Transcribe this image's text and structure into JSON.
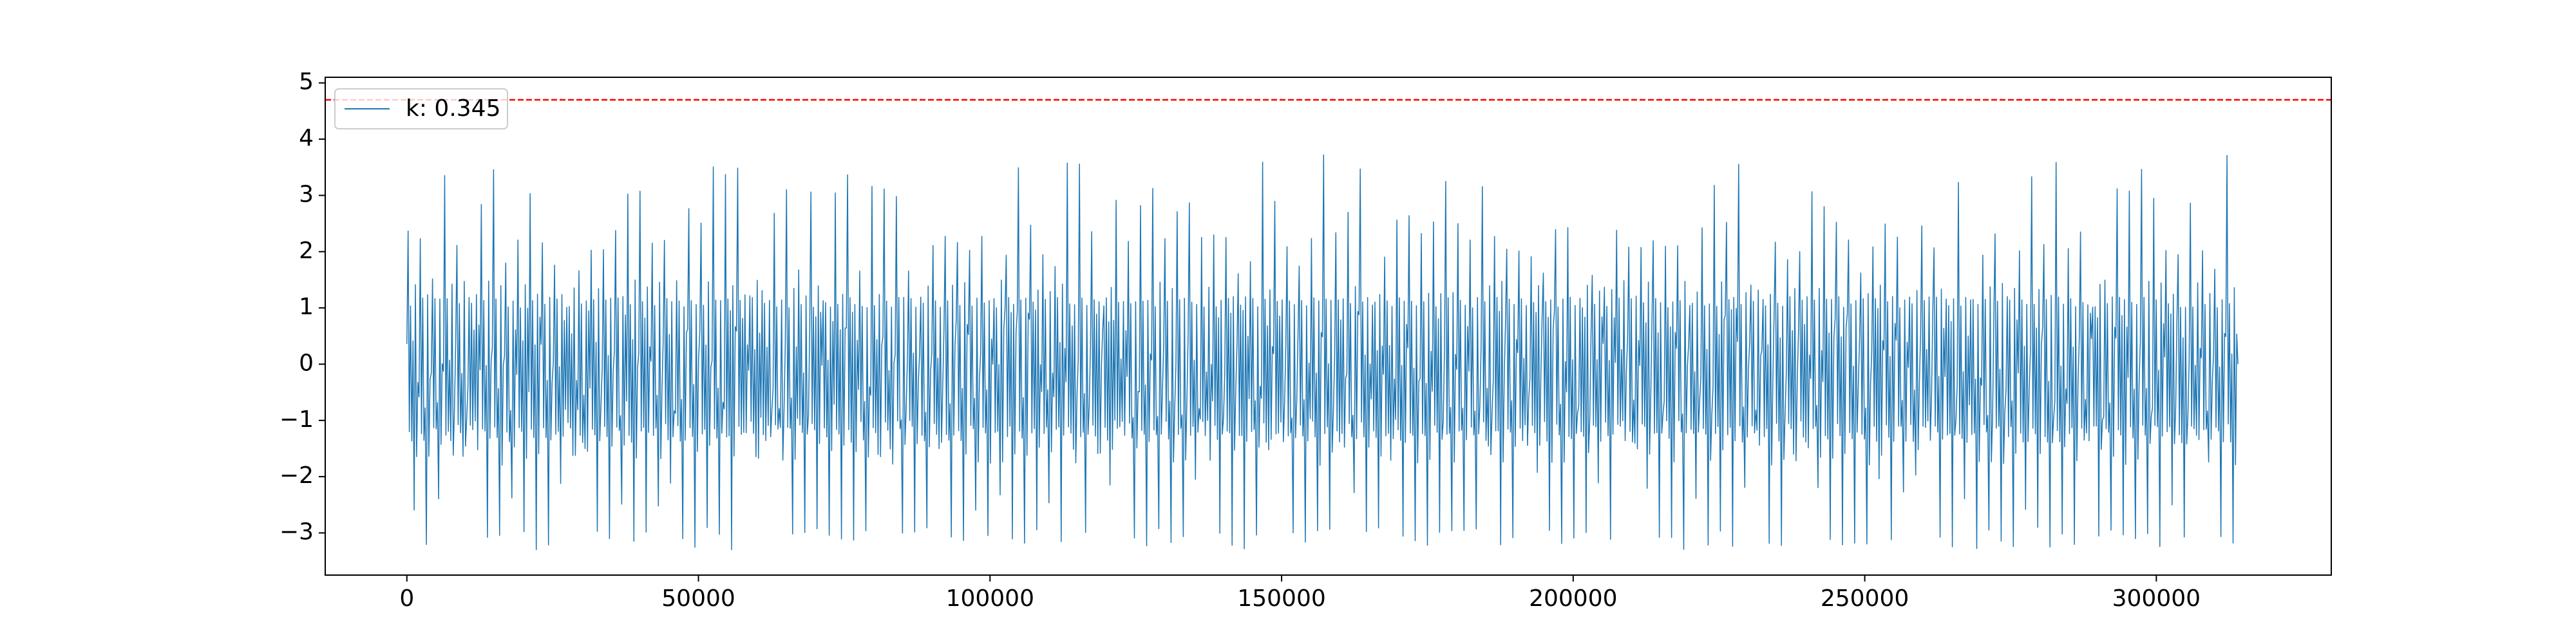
{
  "chart_data": {
    "type": "line",
    "title": "",
    "xlabel": "",
    "ylabel": "",
    "xlim": [
      -14000,
      330000
    ],
    "ylim": [
      -3.75,
      5.1
    ],
    "x_ticks": [
      0,
      50000,
      100000,
      150000,
      200000,
      250000,
      300000
    ],
    "x_tick_labels": [
      "0",
      "50000",
      "100000",
      "150000",
      "200000",
      "250000",
      "300000"
    ],
    "y_ticks": [
      -3,
      -2,
      -1,
      0,
      1,
      2,
      3,
      4,
      5
    ],
    "y_tick_labels": [
      "−3",
      "−2",
      "−1",
      "0",
      "1",
      "2",
      "3",
      "4",
      "5"
    ],
    "grid": false,
    "legend_position": "top-left",
    "series": [
      {
        "name": "k: 0.345",
        "color": "#1f77b4",
        "x_range": [
          0,
          314000
        ],
        "y_range": [
          -3.3,
          3.75
        ],
        "approx_cycles": 150
      }
    ],
    "threshold": {
      "y": 4.7,
      "color": "#ff0000",
      "style": "dashed"
    }
  }
}
